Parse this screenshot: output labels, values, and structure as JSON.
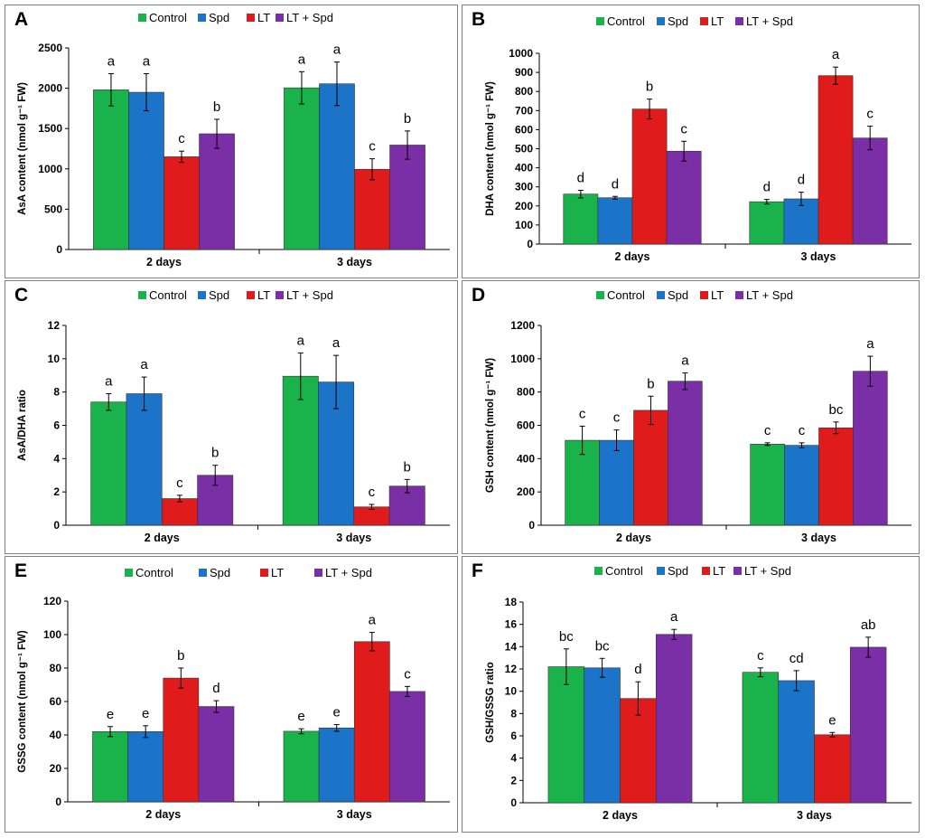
{
  "colors": {
    "Control": "#19b24b",
    "Spd": "#1c74c8",
    "LT": "#e01b1b",
    "LT + Spd": "#7b2fa6"
  },
  "chart_data": [
    {
      "type": "bar",
      "panel_label": "A",
      "categories": [
        "2 days",
        "3 days"
      ],
      "legend": [
        "Control",
        "Spd",
        "LT",
        "LT + Spd"
      ],
      "ylabel": "AsA content (nmol g⁻¹ FW)",
      "ylim": [
        0,
        2500
      ],
      "yticks": [
        0,
        500,
        1000,
        1500,
        2000,
        2500
      ],
      "series": [
        {
          "name": "Control",
          "values": [
            1980,
            2005
          ],
          "errors": [
            200,
            200
          ],
          "letters": [
            "a",
            "a"
          ]
        },
        {
          "name": "Spd",
          "values": [
            1950,
            2055
          ],
          "errors": [
            230,
            270
          ],
          "letters": [
            "a",
            "a"
          ]
        },
        {
          "name": "LT",
          "values": [
            1150,
            995
          ],
          "errors": [
            70,
            130
          ],
          "letters": [
            "c",
            "c"
          ]
        },
        {
          "name": "LT + Spd",
          "values": [
            1435,
            1295
          ],
          "errors": [
            180,
            175
          ],
          "letters": [
            "b",
            "b"
          ]
        }
      ]
    },
    {
      "type": "bar",
      "panel_label": "B",
      "categories": [
        "2 days",
        "3 days"
      ],
      "legend": [
        "Control",
        "Spd",
        "LT",
        "LT + Spd"
      ],
      "ylabel": "DHA content (nmol g⁻¹ FW)",
      "ylim": [
        0,
        1000
      ],
      "yticks": [
        0,
        100,
        200,
        300,
        400,
        500,
        600,
        700,
        800,
        900,
        1000
      ],
      "series": [
        {
          "name": "Control",
          "values": [
            262,
            222
          ],
          "errors": [
            20,
            12
          ],
          "letters": [
            "d",
            "d"
          ]
        },
        {
          "name": "Spd",
          "values": [
            243,
            237
          ],
          "errors": [
            7,
            35
          ],
          "letters": [
            "d",
            "d"
          ]
        },
        {
          "name": "LT",
          "values": [
            708,
            883
          ],
          "errors": [
            52,
            45
          ],
          "letters": [
            "b",
            "a"
          ]
        },
        {
          "name": "LT + Spd",
          "values": [
            487,
            556
          ],
          "errors": [
            52,
            62
          ],
          "letters": [
            "c",
            "c"
          ]
        }
      ]
    },
    {
      "type": "bar",
      "panel_label": "C",
      "categories": [
        "2 days",
        "3 days"
      ],
      "legend": [
        "Control",
        "Spd",
        "LT",
        "LT + Spd"
      ],
      "ylabel": "AsA/DHA ratio",
      "ylim": [
        0,
        12
      ],
      "yticks": [
        0,
        2,
        4,
        6,
        8,
        10,
        12
      ],
      "series": [
        {
          "name": "Control",
          "values": [
            7.4,
            8.95
          ],
          "errors": [
            0.5,
            1.4
          ],
          "letters": [
            "a",
            "a"
          ]
        },
        {
          "name": "Spd",
          "values": [
            7.9,
            8.6
          ],
          "errors": [
            1.0,
            1.6
          ],
          "letters": [
            "a",
            "a"
          ]
        },
        {
          "name": "LT",
          "values": [
            1.6,
            1.1
          ],
          "errors": [
            0.2,
            0.15
          ],
          "letters": [
            "c",
            "c"
          ]
        },
        {
          "name": "LT + Spd",
          "values": [
            3.0,
            2.35
          ],
          "errors": [
            0.6,
            0.4
          ],
          "letters": [
            "b",
            "b"
          ]
        }
      ]
    },
    {
      "type": "bar",
      "panel_label": "D",
      "categories": [
        "2 days",
        "3 days"
      ],
      "legend": [
        "Control",
        "Spd",
        "LT",
        "LT + Spd"
      ],
      "ylabel": "GSH  content (nmol g⁻¹ FW)",
      "ylim": [
        0,
        1200
      ],
      "yticks": [
        0,
        200,
        400,
        600,
        800,
        1000,
        1200
      ],
      "series": [
        {
          "name": "Control",
          "values": [
            510,
            487
          ],
          "errors": [
            85,
            8
          ],
          "letters": [
            "c",
            "c"
          ]
        },
        {
          "name": "Spd",
          "values": [
            510,
            480
          ],
          "errors": [
            62,
            15
          ],
          "letters": [
            "c",
            "c"
          ]
        },
        {
          "name": "LT",
          "values": [
            690,
            585
          ],
          "errors": [
            85,
            35
          ],
          "letters": [
            "b",
            "bc"
          ]
        },
        {
          "name": "LT + Spd",
          "values": [
            865,
            925
          ],
          "errors": [
            50,
            90
          ],
          "letters": [
            "a",
            "a"
          ]
        }
      ]
    },
    {
      "type": "bar",
      "panel_label": "E",
      "categories": [
        "2 days",
        "3 days"
      ],
      "legend": [
        "Control",
        "Spd",
        "LT",
        "LT + Spd"
      ],
      "ylabel": "GSSG content (nmol g⁻¹ FW)",
      "ylim": [
        0,
        120
      ],
      "yticks": [
        0,
        20,
        40,
        60,
        80,
        100,
        120
      ],
      "series": [
        {
          "name": "Control",
          "values": [
            42,
            42.2
          ],
          "errors": [
            3,
            1.5
          ],
          "letters": [
            "e",
            "e"
          ]
        },
        {
          "name": "Spd",
          "values": [
            42,
            44.2
          ],
          "errors": [
            3.5,
            2
          ],
          "letters": [
            "e",
            "e"
          ]
        },
        {
          "name": "LT",
          "values": [
            74,
            95.8
          ],
          "errors": [
            6,
            5.5
          ],
          "letters": [
            "b",
            "a"
          ]
        },
        {
          "name": "LT + Spd",
          "values": [
            57,
            66
          ],
          "errors": [
            3.5,
            3
          ],
          "letters": [
            "d",
            "c"
          ]
        }
      ]
    },
    {
      "type": "bar",
      "panel_label": "F",
      "categories": [
        "2 days",
        "3 days"
      ],
      "legend": [
        "Control",
        "Spd",
        "LT",
        "LT + Spd"
      ],
      "ylabel": "GSH/GSSG ratio",
      "ylim": [
        0,
        18
      ],
      "yticks": [
        0,
        2,
        4,
        6,
        8,
        10,
        12,
        14,
        16,
        18
      ],
      "series": [
        {
          "name": "Control",
          "values": [
            12.2,
            11.7
          ],
          "errors": [
            1.6,
            0.4
          ],
          "letters": [
            "bc",
            "c"
          ]
        },
        {
          "name": "Spd",
          "values": [
            12.1,
            10.95
          ],
          "errors": [
            0.85,
            0.9
          ],
          "letters": [
            "bc",
            "cd"
          ]
        },
        {
          "name": "LT",
          "values": [
            9.35,
            6.1
          ],
          "errors": [
            1.5,
            0.2
          ],
          "letters": [
            "d",
            "e"
          ]
        },
        {
          "name": "LT + Spd",
          "values": [
            15.1,
            13.95
          ],
          "errors": [
            0.45,
            0.9
          ],
          "letters": [
            "a",
            "ab"
          ]
        }
      ]
    }
  ]
}
